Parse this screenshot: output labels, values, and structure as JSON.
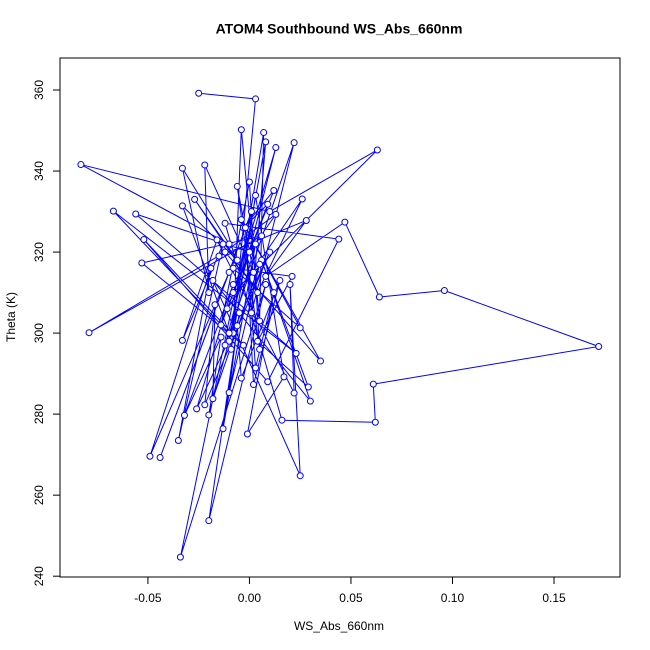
{
  "chart_data": {
    "type": "line",
    "title": "ATOM4 Southbound WS_Abs_660nm",
    "xlabel": "WS_Abs_660nm",
    "ylabel": "Theta (K)",
    "color": "#0000ff",
    "markers": true,
    "xlim": [
      -0.0933,
      0.1825
    ],
    "ylim": [
      239.8,
      367.9
    ],
    "xticks": [
      -0.05,
      {
        "value": 0,
        "label": "0.00"
      },
      0.05,
      {
        "value": 0.1,
        "label": "0.10"
      },
      0.15
    ],
    "yticks": [
      240,
      260,
      280,
      300,
      320,
      340,
      360
    ],
    "x": [
      -0.025,
      0.003,
      -0.008,
      -0.004,
      0.005,
      0.007,
      -0.01,
      0.008,
      0.001,
      0.022,
      -0.012,
      0.013,
      -0.008,
      0.063,
      0.01,
      -0.083,
      -0.01,
      -0.033,
      -0.02,
      -0.022,
      0.002,
      -0.006,
      0.005,
      0.0,
      -0.014,
      0.012,
      -0.003,
      0.009,
      -0.011,
      0.026,
      0.004,
      -0.027,
      -0.006,
      -0.033,
      -0.01,
      -0.067,
      0.023,
      -0.056,
      0.0,
      0.013,
      -0.015,
      0.028,
      0.008,
      0.047,
      0.064,
      0.096,
      0.172,
      0.061,
      0.062,
      0.016,
      -0.012,
      0.044,
      0.009,
      -0.052,
      -0.003,
      -0.053,
      0.006,
      -0.079,
      -0.012,
      0.035,
      -0.004,
      0.025,
      -0.008,
      0.021,
      0.004,
      0.029,
      0.006,
      0.03,
      -0.018,
      0.025,
      0.02,
      0.022,
      -0.016,
      -0.033,
      -0.013,
      -0.035,
      -0.019,
      -0.049,
      -0.01,
      -0.044,
      0.001,
      -0.034,
      0.008,
      -0.02,
      -0.005,
      -0.013,
      0.003,
      -0.02,
      -0.014,
      -0.032,
      -0.008,
      -0.026,
      0.01,
      -0.022,
      -0.017,
      -0.018,
      0.005,
      -0.01,
      -0.006,
      -0.004,
      0.015,
      0.002,
      -0.002,
      0.003,
      0.012,
      -0.001,
      0.017,
      0.003,
      -0.009
    ],
    "values": [
      359.2,
      357.8,
      300,
      350.2,
      303,
      349.5,
      298,
      347.2,
      305,
      347,
      297,
      345.8,
      310,
      345.2,
      330,
      341.6,
      322,
      340.7,
      310,
      341.5,
      315,
      336.2,
      296,
      337.3,
      302,
      335.2,
      326,
      331.8,
      306,
      333.1,
      310,
      333.0,
      318,
      331.4,
      300,
      330.1,
      295,
      329.4,
      320,
      329.3,
      319,
      327.8,
      314,
      327.4,
      308.9,
      310.5,
      296.7,
      287.4,
      278.0,
      278.5,
      327.1,
      323.2,
      288,
      323.1,
      297,
      317.3,
      324,
      300.1,
      320,
      293.1,
      328,
      301.3,
      316,
      314.0,
      298,
      286.7,
      318,
      283.2,
      313,
      264.8,
      312,
      285.2,
      323,
      298.2,
      322,
      273.5,
      316,
      269.6,
      315,
      269.3,
      330,
      244.7,
      312,
      253.7,
      305,
      276.4,
      322,
      279.8,
      299,
      279.7,
      312,
      281.3,
      320,
      282.3,
      307,
      283.8,
      317,
      285.3,
      301.8,
      288.9,
      313,
      287.3,
      326,
      291.4,
      310,
      275.1,
      289.2,
      334,
      296
    ]
  }
}
